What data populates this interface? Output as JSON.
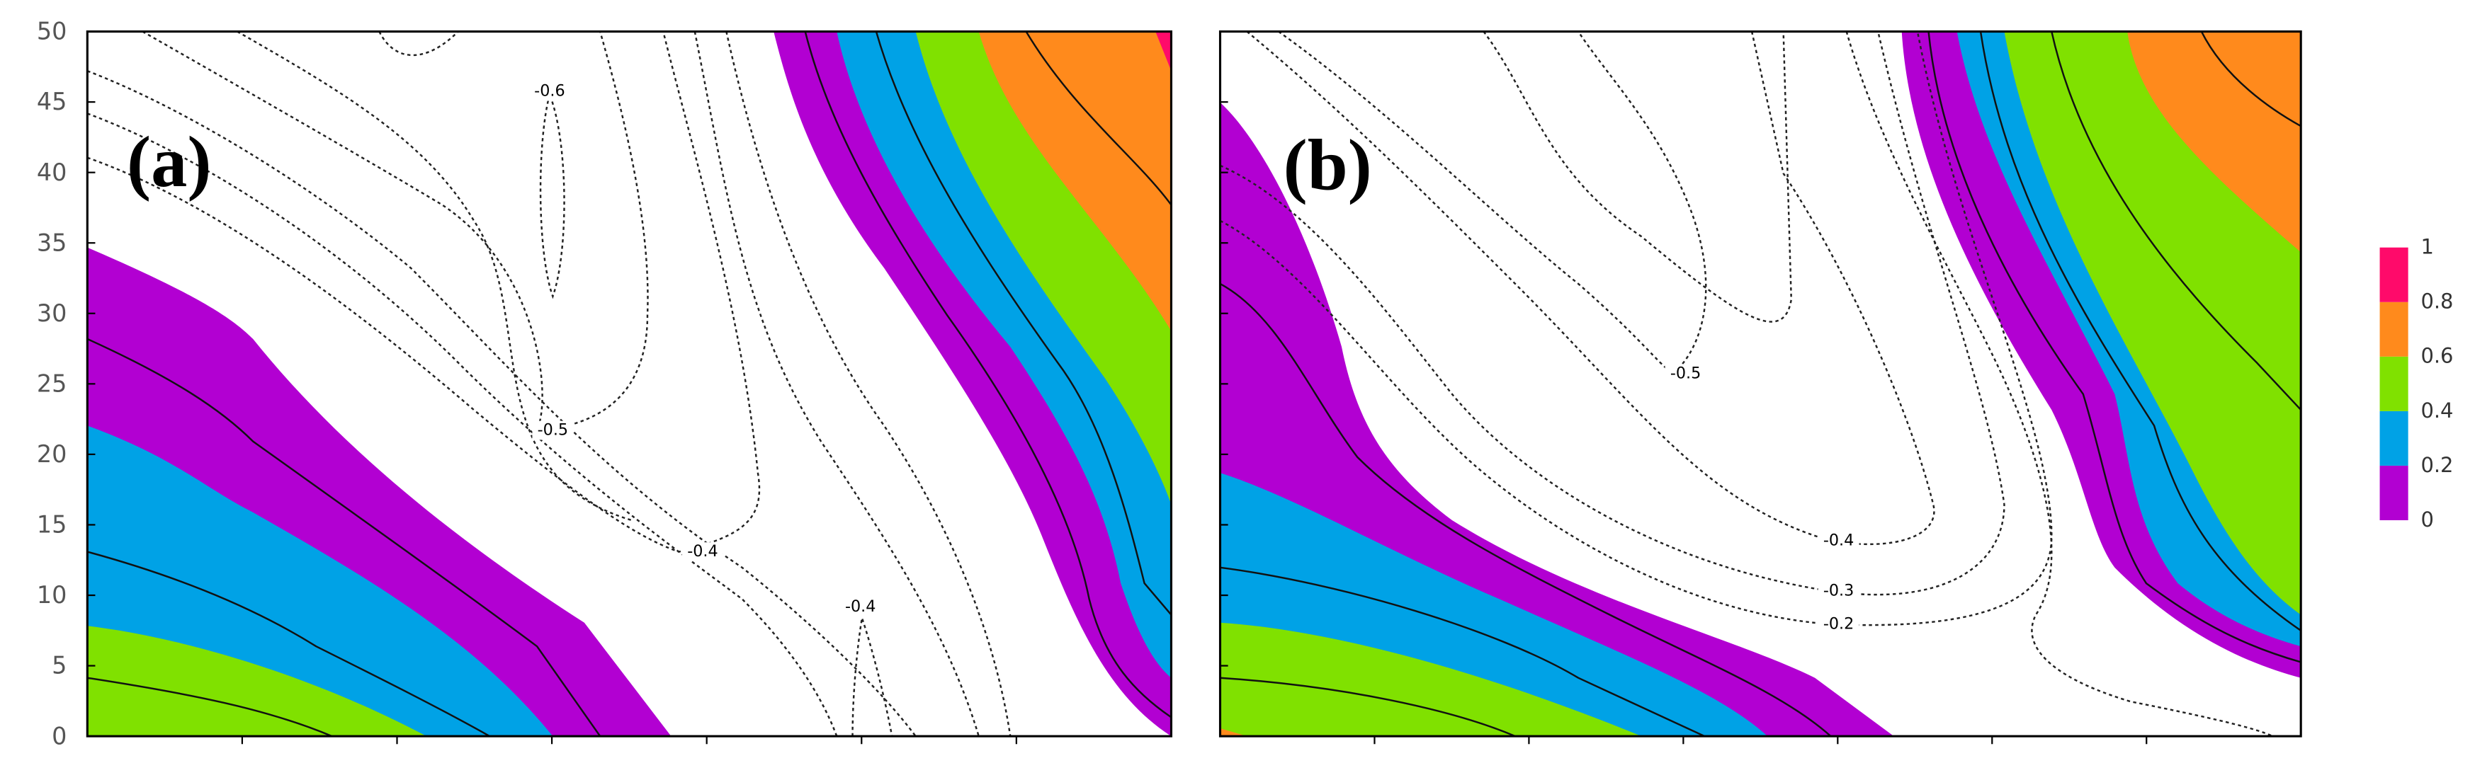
{
  "chart_data": {
    "type": "contour",
    "panels": [
      {
        "label": "(a)",
        "contour_labels": [
          -0.6,
          -0.5,
          -0.4,
          -0.4
        ]
      },
      {
        "label": "(b)",
        "contour_labels": [
          -0.5,
          -0.4,
          -0.3,
          -0.2
        ]
      }
    ],
    "ylim": [
      0,
      50
    ],
    "yticks": [
      0,
      5,
      10,
      15,
      20,
      25,
      30,
      35,
      40,
      45,
      50
    ],
    "colorbar": {
      "ticks": [
        0,
        0.2,
        0.4,
        0.6,
        0.8,
        1
      ],
      "colors": [
        "#b200d2",
        "#00a2e6",
        "#80e100",
        "#ff8a1c",
        "#ff0a6a"
      ]
    }
  }
}
